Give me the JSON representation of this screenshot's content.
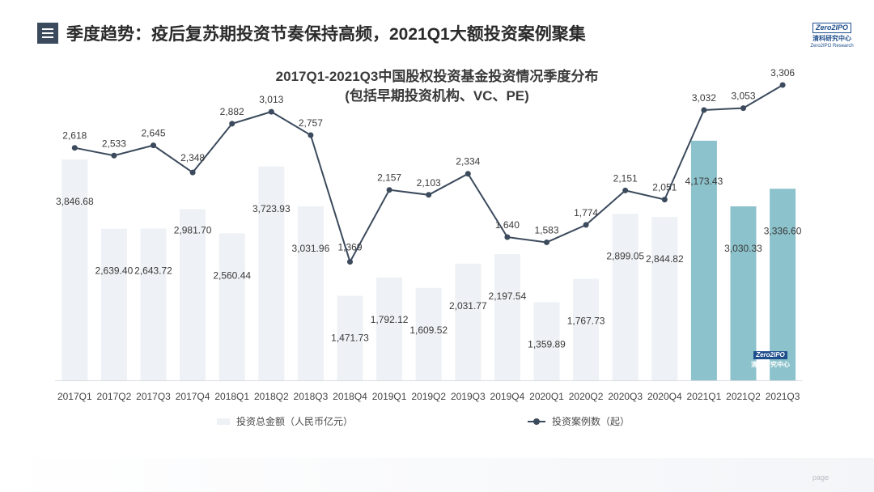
{
  "header": {
    "title": "季度趋势：疫后复苏期投资节奏保持高频，2021Q1大额投资案例聚集",
    "menu_icon": "menu-icon"
  },
  "logo": {
    "badge": "Zero2IPO",
    "cn": "清科研究中心",
    "en": "Zero2IPO Research"
  },
  "watermark": {
    "badge": "Zero2IPO",
    "cn": "清科研究中心"
  },
  "footer": {
    "page_label": "page"
  },
  "colors": {
    "bar": "#eef1f5",
    "bar_highlight": "#8cc2cc",
    "line": "#3b4a5c",
    "text": "#3a3a3a"
  },
  "chart_data": {
    "type": "bar",
    "title": "2017Q1-2021Q3中国股权投资基金投资情况季度分布",
    "subtitle": "(包括早期投资机构、VC、PE)",
    "categories": [
      "2017Q1",
      "2017Q2",
      "2017Q3",
      "2017Q4",
      "2018Q1",
      "2018Q2",
      "2018Q3",
      "2018Q4",
      "2019Q1",
      "2019Q2",
      "2019Q3",
      "2019Q4",
      "2020Q1",
      "2020Q2",
      "2020Q3",
      "2020Q4",
      "2021Q1",
      "2021Q2",
      "2021Q3"
    ],
    "series": [
      {
        "name": "投资总金额（人民币亿元）",
        "type": "bar",
        "values": [
          3846.68,
          2639.4,
          2643.72,
          2981.7,
          2560.44,
          3723.93,
          3031.96,
          1471.73,
          1792.12,
          1609.52,
          2031.77,
          2197.54,
          1359.89,
          1767.73,
          2899.05,
          2844.82,
          4173.43,
          3030.33,
          3336.6
        ],
        "labels": [
          "3,846.68",
          "2,639.40",
          "2,643.72",
          "2,981.70",
          "2,560.44",
          "3,723.93",
          "3,031.96",
          "1,471.73",
          "1,792.12",
          "1,609.52",
          "2,031.77",
          "2,197.54",
          "1,359.89",
          "1,767.73",
          "2,899.05",
          "2,844.82",
          "4,173.43",
          "3,030.33",
          "3,336.60"
        ],
        "highlight_from_index": 16
      },
      {
        "name": "投资案例数（起）",
        "type": "line",
        "values": [
          2618,
          2533,
          2645,
          2348,
          2882,
          3013,
          2757,
          1369,
          2157,
          2103,
          2334,
          1640,
          1583,
          1774,
          2151,
          2051,
          3032,
          3053,
          3306
        ],
        "labels": [
          "2,618",
          "2,533",
          "2,645",
          "2,348",
          "2,882",
          "3,013",
          "2,757",
          "1,369",
          "2,157",
          "2,103",
          "2,334",
          "1,640",
          "1,583",
          "1,774",
          "2,151",
          "2,051",
          "3,032",
          "3,053",
          "3,306"
        ]
      }
    ],
    "legend_position": "bottom",
    "grid": false
  }
}
